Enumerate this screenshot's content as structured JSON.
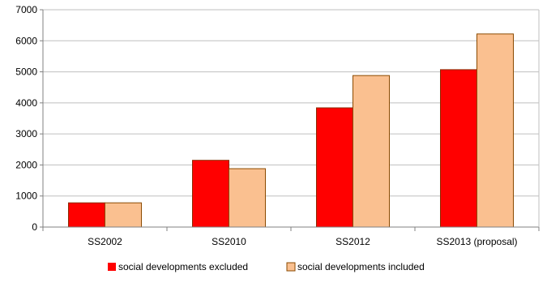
{
  "chart_data": {
    "type": "bar",
    "title": "",
    "xlabel": "",
    "ylabel": "",
    "categories": [
      "SS2002",
      "SS2010",
      "SS2012",
      "SS2013 (proposal)"
    ],
    "series": [
      {
        "name": "social developments excluded",
        "values": [
          780,
          2150,
          3840,
          5070
        ],
        "color": "#ff0000",
        "edge": "#8b2a00"
      },
      {
        "name": "social developments included",
        "values": [
          780,
          1880,
          4880,
          6220
        ],
        "color": "#fac090",
        "edge": "#8b4a00"
      }
    ],
    "ylim": [
      0,
      7000
    ],
    "yticks": [
      0,
      1000,
      2000,
      3000,
      4000,
      5000,
      6000,
      7000
    ],
    "grid": true,
    "grid_color": "#bfbfbf",
    "axis_color": "#808080",
    "legend_position": "bottom"
  }
}
